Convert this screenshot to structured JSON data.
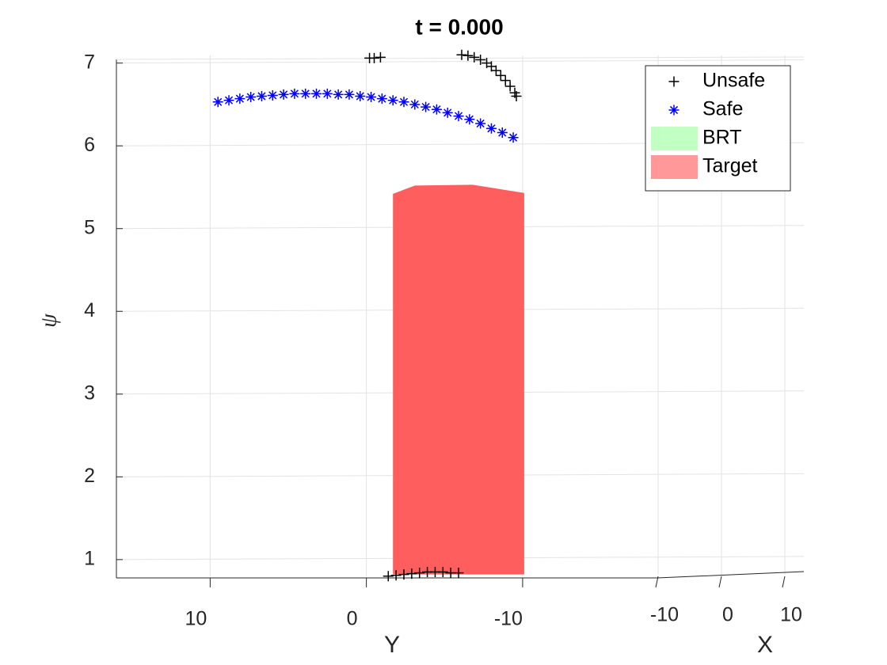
{
  "chart_data": {
    "type": "scatter",
    "title": "t = 0.000",
    "xlabel": "Y",
    "ylabel": "ψ",
    "x2label": "X",
    "xlim": [
      16,
      -28
    ],
    "xticks": [
      10,
      0,
      -10
    ],
    "x2lim": [
      -12,
      13
    ],
    "x2ticks": [
      -10,
      0,
      10
    ],
    "ylim": [
      0.75,
      7.15
    ],
    "yticks": [
      1,
      2,
      3,
      4,
      5,
      6,
      7
    ],
    "grid": true,
    "legend": "upper right",
    "series": [
      {
        "name": "Unsafe",
        "color": "#000000",
        "marker": "+",
        "x": [
          -0.2,
          -0.5,
          -0.9,
          -6.1,
          -6.5,
          -6.9,
          -7.3,
          -7.7,
          -8.0,
          -8.3,
          -8.6,
          -8.9,
          -9.2,
          -9.5,
          -9.6,
          -1.4,
          -1.9,
          -2.4,
          -2.9,
          -3.4,
          -3.9,
          -4.4,
          -4.9,
          -5.4,
          -5.9
        ],
        "values": [
          7.06,
          7.06,
          7.07,
          7.1,
          7.09,
          7.07,
          7.04,
          7.0,
          6.96,
          6.91,
          6.85,
          6.79,
          6.72,
          6.64,
          6.6,
          0.8,
          0.81,
          0.82,
          0.83,
          0.84,
          0.85,
          0.85,
          0.85,
          0.84,
          0.84
        ]
      },
      {
        "name": "Safe",
        "color": "#0000ff",
        "marker": "*",
        "x": [
          9.5,
          8.8,
          8.1,
          7.4,
          6.7,
          6.0,
          5.3,
          4.6,
          3.9,
          3.2,
          2.5,
          1.8,
          1.1,
          0.4,
          -0.3,
          -1.0,
          -1.7,
          -2.4,
          -3.1,
          -3.8,
          -4.5,
          -5.2,
          -5.9,
          -6.6,
          -7.3,
          -8.0,
          -8.7,
          -9.4
        ],
        "values": [
          6.53,
          6.55,
          6.57,
          6.59,
          6.6,
          6.61,
          6.62,
          6.63,
          6.63,
          6.63,
          6.63,
          6.62,
          6.62,
          6.6,
          6.59,
          6.57,
          6.55,
          6.53,
          6.5,
          6.47,
          6.44,
          6.4,
          6.36,
          6.32,
          6.27,
          6.21,
          6.16,
          6.1
        ]
      }
    ],
    "regions": [
      {
        "name": "BRT",
        "color": "#99ff99"
      },
      {
        "name": "Target",
        "color": "#ff5555",
        "x": [
          -1.7,
          -3.1,
          -6.8,
          -10.1
        ],
        "values": [
          5.42,
          5.52,
          5.53,
          5.43
        ],
        "base": 0.82
      }
    ]
  }
}
